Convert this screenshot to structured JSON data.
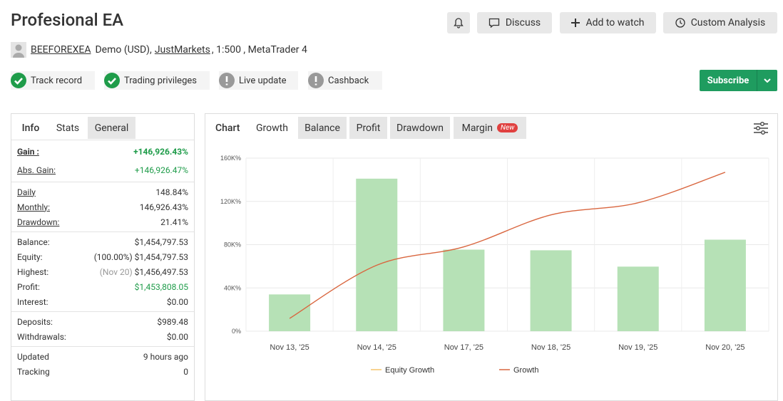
{
  "header": {
    "title": "Profesional EA",
    "buttons": [
      "Discuss",
      "Add to watch",
      "Custom Analysis"
    ],
    "user": "BEEFOREXEA",
    "account": "Demo (USD),",
    "broker": "JustMarkets",
    "details": ", 1:500 , MetaTrader 4"
  },
  "badges": [
    {
      "label": "Track record",
      "status": "ok"
    },
    {
      "label": "Trading privileges",
      "status": "ok"
    },
    {
      "label": "Live update",
      "status": "warn"
    },
    {
      "label": "Cashback",
      "status": "warn"
    }
  ],
  "subscribe": "Subscribe",
  "stats_tabs": {
    "tabs": [
      "Info",
      "Stats",
      "General"
    ],
    "active": 1
  },
  "stats": [
    [
      {
        "label": "Gain :",
        "value": "+146,926.43%",
        "positive": true
      },
      {
        "label": "Abs. Gain:",
        "value": "+146,926.47%",
        "positive": true
      }
    ],
    [
      {
        "label": "Daily",
        "value": "148.84%"
      },
      {
        "label": "Monthly:",
        "value": "146,926.43%"
      },
      {
        "label": "Drawdown:",
        "value": "21.41%"
      }
    ],
    [
      {
        "label": "Balance:",
        "value": "$1,454,797.53"
      },
      {
        "label": "Equity:",
        "note": "(100.00%)",
        "value": "$1,454,797.53"
      },
      {
        "label": "Highest:",
        "note": "(Nov 20)",
        "value": "$1,456,497.53"
      },
      {
        "label": "Profit:",
        "value": "$1,453,808.05",
        "positive": true
      },
      {
        "label": "Interest:",
        "value": "$0.00"
      }
    ],
    [
      {
        "label": "Deposits:",
        "value": "$989.48"
      },
      {
        "label": "Withdrawals:",
        "value": "$0.00"
      }
    ],
    [
      {
        "label": "Updated",
        "value": "9 hours ago"
      },
      {
        "label": "Tracking",
        "value": "0"
      }
    ]
  ],
  "chart_tabs": {
    "title": "Chart",
    "tabs": [
      "Growth",
      "Balance",
      "Profit",
      "Drawdown",
      "Margin"
    ],
    "active": 0,
    "badge": "New"
  },
  "chart_data": {
    "type": "bar",
    "categories": [
      "Nov 13, '25",
      "Nov 14, '25",
      "Nov 17, '25",
      "Nov 18, '25",
      "Nov 19, '25",
      "Nov 20, '25"
    ],
    "series": [
      {
        "name": "Equity Growth",
        "type": "bar",
        "color": "#b6e1b6",
        "legend_color": "#f5c46a",
        "values": [
          34000,
          141000,
          75400,
          74800,
          59700,
          84600
        ]
      },
      {
        "name": "Growth",
        "type": "line",
        "color": "#d9663f",
        "values": [
          11800,
          61000,
          78000,
          107500,
          118700,
          146926
        ]
      }
    ],
    "ylim": [
      0,
      160000
    ],
    "yticks": [
      {
        "value": 0,
        "label": "0%"
      },
      {
        "value": 40000,
        "label": "40K%"
      },
      {
        "value": 80000,
        "label": "80K%"
      },
      {
        "value": 120000,
        "label": "120K%"
      },
      {
        "value": 160000,
        "label": "160K%"
      }
    ],
    "grid": true
  }
}
